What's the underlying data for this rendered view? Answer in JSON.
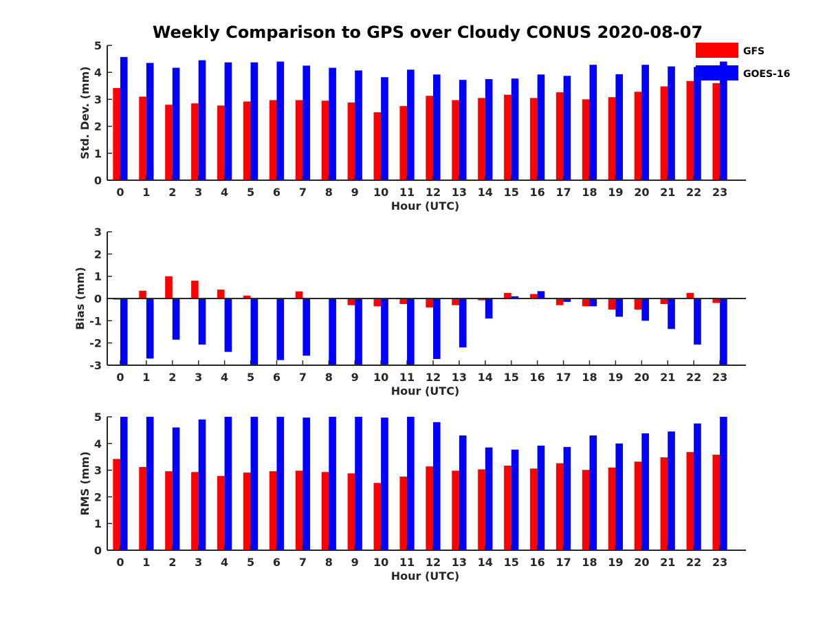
{
  "title": "Weekly Comparison to GPS over Cloudy CONUS 2020-08-07",
  "colors": {
    "GFS": "#ff0000",
    "GOES-16": "#0000ff",
    "axis": "#262626"
  },
  "legend": {
    "position": "top-right",
    "items": [
      "GFS",
      "GOES-16"
    ]
  },
  "chart_data": [
    {
      "type": "bar",
      "xlabel": "Hour (UTC)",
      "ylabel": "Std. Dev. (mm)",
      "ylim": [
        0,
        5
      ],
      "yticks": [
        0,
        1,
        2,
        3,
        4,
        5
      ],
      "categories": [
        "0",
        "1",
        "2",
        "3",
        "4",
        "5",
        "6",
        "7",
        "8",
        "9",
        "10",
        "11",
        "12",
        "13",
        "14",
        "15",
        "16",
        "17",
        "18",
        "19",
        "20",
        "21",
        "22",
        "23"
      ],
      "series": [
        {
          "name": "GFS",
          "values": [
            3.42,
            3.1,
            2.8,
            2.85,
            2.77,
            2.92,
            2.97,
            2.97,
            2.95,
            2.88,
            2.52,
            2.75,
            3.13,
            2.97,
            3.05,
            3.17,
            3.05,
            3.26,
            3.0,
            3.08,
            3.28,
            3.48,
            3.68,
            3.6
          ]
        },
        {
          "name": "GOES-16",
          "values": [
            4.57,
            4.35,
            4.17,
            4.45,
            4.37,
            4.37,
            4.4,
            4.25,
            4.17,
            4.07,
            3.82,
            4.1,
            3.92,
            3.72,
            3.75,
            3.77,
            3.92,
            3.87,
            4.28,
            3.93,
            4.28,
            4.22,
            4.2,
            4.4
          ]
        }
      ]
    },
    {
      "type": "bar",
      "xlabel": "Hour (UTC)",
      "ylabel": "Bias (mm)",
      "ylim": [
        -3,
        3
      ],
      "yticks": [
        -3,
        -2,
        -1,
        0,
        1,
        2,
        3
      ],
      "categories": [
        "0",
        "1",
        "2",
        "3",
        "4",
        "5",
        "6",
        "7",
        "8",
        "9",
        "10",
        "11",
        "12",
        "13",
        "14",
        "15",
        "16",
        "17",
        "18",
        "19",
        "20",
        "21",
        "22",
        "23"
      ],
      "series": [
        {
          "name": "GFS",
          "values": [
            -0.05,
            0.35,
            1.0,
            0.8,
            0.4,
            0.13,
            0.02,
            0.32,
            -0.02,
            -0.3,
            -0.35,
            -0.25,
            -0.4,
            -0.3,
            -0.08,
            0.25,
            0.2,
            -0.3,
            -0.35,
            -0.5,
            -0.5,
            -0.25,
            0.25,
            -0.2
          ]
        },
        {
          "name": "GOES-16",
          "values": [
            -3.0,
            -2.7,
            -1.85,
            -2.07,
            -2.4,
            -3.0,
            -2.77,
            -2.57,
            -3.0,
            -3.0,
            -3.0,
            -3.0,
            -2.72,
            -2.2,
            -0.9,
            0.1,
            0.33,
            -0.15,
            -0.35,
            -0.82,
            -1.0,
            -1.37,
            -2.07,
            -3.0
          ]
        }
      ]
    },
    {
      "type": "bar",
      "xlabel": "Hour (UTC)",
      "ylabel": "RMS (mm)",
      "ylim": [
        0,
        5
      ],
      "yticks": [
        0,
        1,
        2,
        3,
        4,
        5
      ],
      "categories": [
        "0",
        "1",
        "2",
        "3",
        "4",
        "5",
        "6",
        "7",
        "8",
        "9",
        "10",
        "11",
        "12",
        "13",
        "14",
        "15",
        "16",
        "17",
        "18",
        "19",
        "20",
        "21",
        "22",
        "23"
      ],
      "series": [
        {
          "name": "GFS",
          "values": [
            3.42,
            3.12,
            2.96,
            2.93,
            2.78,
            2.91,
            2.96,
            2.98,
            2.93,
            2.88,
            2.52,
            2.76,
            3.14,
            2.98,
            3.03,
            3.17,
            3.06,
            3.26,
            3.01,
            3.1,
            3.32,
            3.48,
            3.68,
            3.58
          ]
        },
        {
          "name": "GOES-16",
          "values": [
            5.0,
            5.0,
            4.6,
            4.9,
            5.0,
            5.0,
            5.0,
            4.97,
            5.0,
            5.0,
            4.97,
            5.0,
            4.8,
            4.3,
            3.85,
            3.77,
            3.92,
            3.87,
            4.3,
            4.0,
            4.38,
            4.45,
            4.75,
            5.0
          ]
        }
      ]
    }
  ]
}
